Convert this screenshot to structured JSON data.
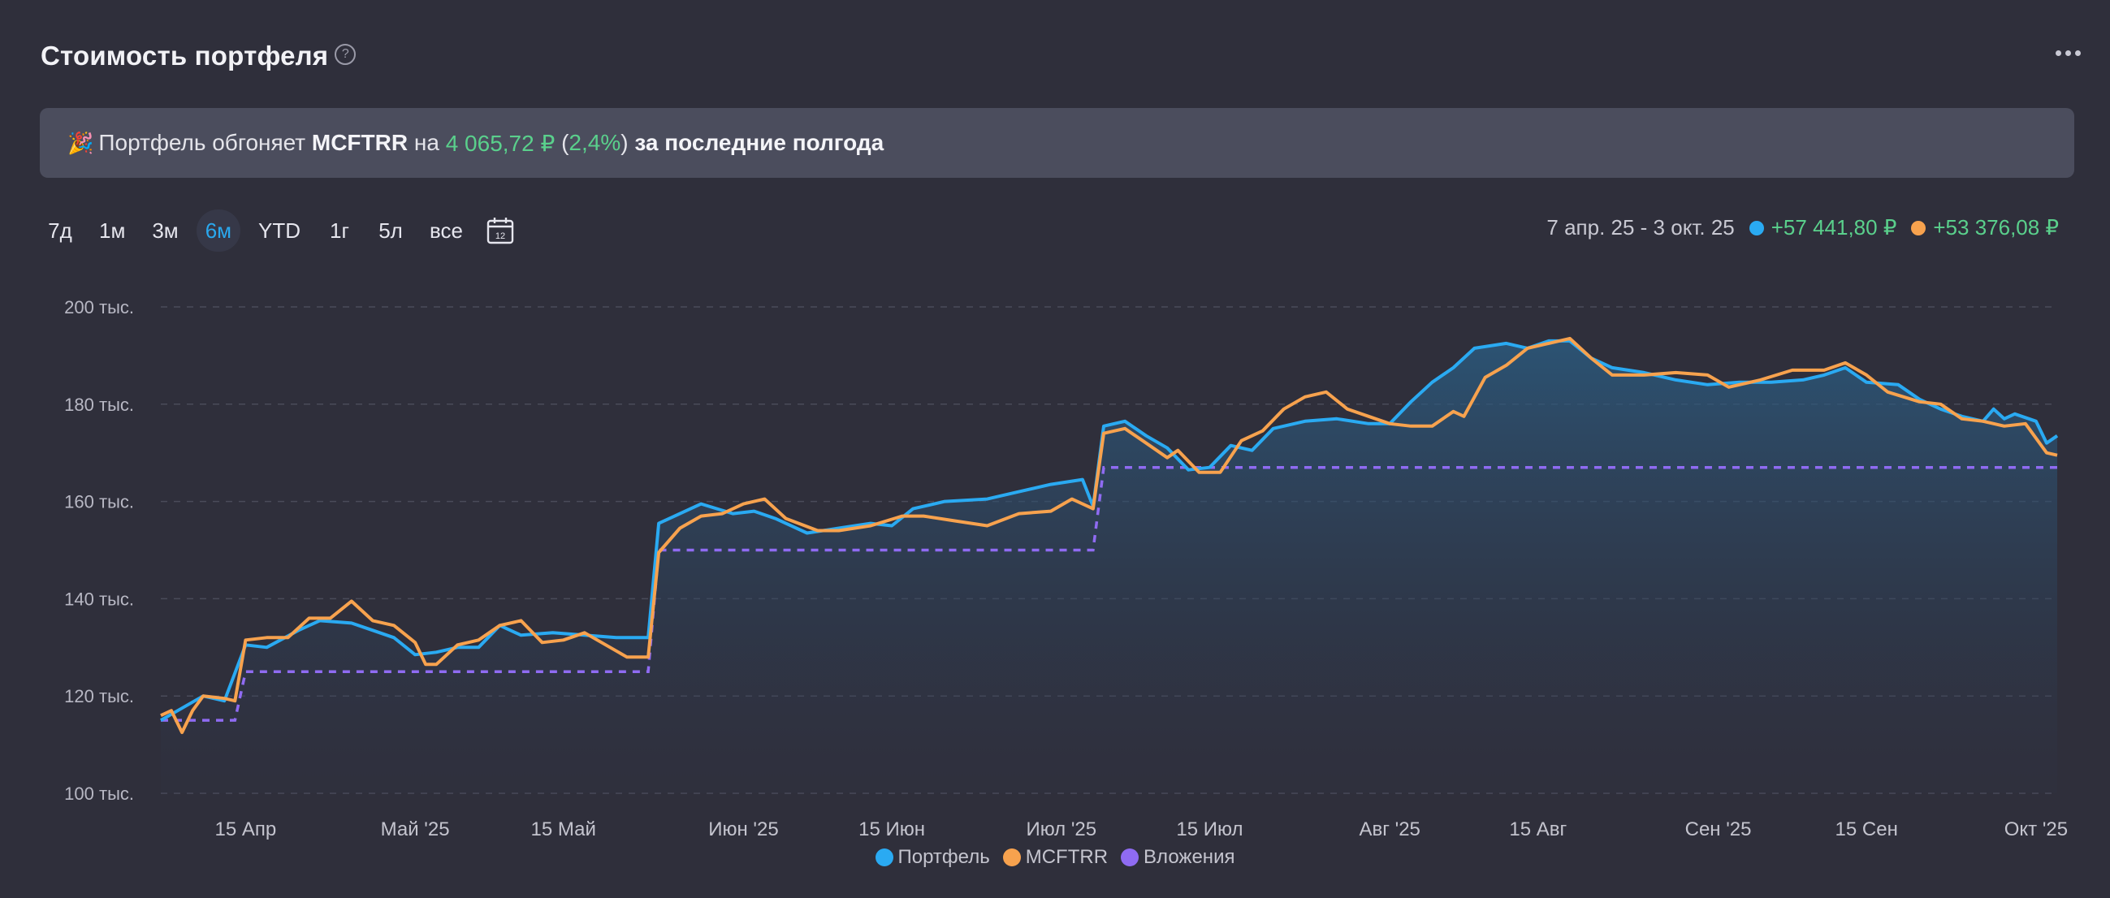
{
  "header": {
    "title": "Стоимость портфеля",
    "help_icon": "?"
  },
  "banner": {
    "emoji": "🎉",
    "text1": "Портфель обгоняет",
    "ticker": "MCFTRR",
    "text2": "на",
    "amount": "4 065,72 ₽",
    "open_paren": "(",
    "percent": "2,4%",
    "close_paren": ")",
    "text3": "за последние полгода"
  },
  "periods": [
    {
      "label": "7д",
      "active": false
    },
    {
      "label": "1м",
      "active": false
    },
    {
      "label": "3м",
      "active": false
    },
    {
      "label": "6м",
      "active": true
    },
    {
      "label": "YTD",
      "active": false
    },
    {
      "label": "1г",
      "active": false
    },
    {
      "label": "5л",
      "active": false
    },
    {
      "label": "все",
      "active": false
    }
  ],
  "calendar_icon_day": "12",
  "range": {
    "dates": "7 апр. 25 - 3 окт. 25",
    "portfolio_gain": "+57 441,80 ₽",
    "index_gain": "+53 376,08 ₽"
  },
  "colors": {
    "portfolio": "#2aaaf2",
    "index": "#f7a24e",
    "contributions": "#8f6bf2",
    "background": "#2f2f3b",
    "gain": "#5ad08c"
  },
  "chart_data": {
    "type": "line",
    "x_range": [
      "2025-04-07",
      "2025-10-03"
    ],
    "ylim": [
      100000,
      200000
    ],
    "y_ticks": [
      {
        "value": 100000,
        "label": "100 тыс."
      },
      {
        "value": 120000,
        "label": "120 тыс."
      },
      {
        "value": 140000,
        "label": "140 тыс."
      },
      {
        "value": 160000,
        "label": "160 тыс."
      },
      {
        "value": 180000,
        "label": "180 тыс."
      },
      {
        "value": 200000,
        "label": "200 тыс."
      }
    ],
    "x_ticks": [
      {
        "date": "2025-04-15",
        "label": "15 Апр"
      },
      {
        "date": "2025-05-01",
        "label": "Май '25"
      },
      {
        "date": "2025-05-15",
        "label": "15 Май"
      },
      {
        "date": "2025-06-01",
        "label": "Июн '25"
      },
      {
        "date": "2025-06-15",
        "label": "15 Июн"
      },
      {
        "date": "2025-07-01",
        "label": "Июл '25"
      },
      {
        "date": "2025-07-15",
        "label": "15 Июл"
      },
      {
        "date": "2025-08-01",
        "label": "Авг '25"
      },
      {
        "date": "2025-08-15",
        "label": "15 Авг"
      },
      {
        "date": "2025-09-01",
        "label": "Сен '25"
      },
      {
        "date": "2025-09-15",
        "label": "15 Сен"
      },
      {
        "date": "2025-10-01",
        "label": "Окт '25"
      }
    ],
    "grid": true,
    "legend_position": "bottom-center",
    "series": [
      {
        "name": "Портфель",
        "style": "area-line",
        "color": "#2aaaf2",
        "points": [
          [
            "2025-04-07",
            115000
          ],
          [
            "2025-04-09",
            117500
          ],
          [
            "2025-04-11",
            120000
          ],
          [
            "2025-04-13",
            119000
          ],
          [
            "2025-04-15",
            130500
          ],
          [
            "2025-04-17",
            130000
          ],
          [
            "2025-04-20",
            133500
          ],
          [
            "2025-04-22",
            135500
          ],
          [
            "2025-04-25",
            135000
          ],
          [
            "2025-04-27",
            133500
          ],
          [
            "2025-04-29",
            132000
          ],
          [
            "2025-05-01",
            128500
          ],
          [
            "2025-05-03",
            129000
          ],
          [
            "2025-05-05",
            130000
          ],
          [
            "2025-05-07",
            130000
          ],
          [
            "2025-05-09",
            134500
          ],
          [
            "2025-05-11",
            132500
          ],
          [
            "2025-05-14",
            133000
          ],
          [
            "2025-05-17",
            132500
          ],
          [
            "2025-05-20",
            132000
          ],
          [
            "2025-05-23",
            132000
          ],
          [
            "2025-05-24",
            155500
          ],
          [
            "2025-05-26",
            157500
          ],
          [
            "2025-05-28",
            159500
          ],
          [
            "2025-05-31",
            157500
          ],
          [
            "2025-06-02",
            158000
          ],
          [
            "2025-06-04",
            156500
          ],
          [
            "2025-06-07",
            153500
          ],
          [
            "2025-06-10",
            154500
          ],
          [
            "2025-06-13",
            155500
          ],
          [
            "2025-06-15",
            155000
          ],
          [
            "2025-06-17",
            158500
          ],
          [
            "2025-06-20",
            160000
          ],
          [
            "2025-06-24",
            160500
          ],
          [
            "2025-06-27",
            162000
          ],
          [
            "2025-06-30",
            163500
          ],
          [
            "2025-07-03",
            164500
          ],
          [
            "2025-07-04",
            159000
          ],
          [
            "2025-07-05",
            175500
          ],
          [
            "2025-07-07",
            176500
          ],
          [
            "2025-07-09",
            173500
          ],
          [
            "2025-07-11",
            171000
          ],
          [
            "2025-07-13",
            166500
          ],
          [
            "2025-07-15",
            167000
          ],
          [
            "2025-07-17",
            171500
          ],
          [
            "2025-07-19",
            170500
          ],
          [
            "2025-07-21",
            175000
          ],
          [
            "2025-07-24",
            176500
          ],
          [
            "2025-07-27",
            177000
          ],
          [
            "2025-07-30",
            176000
          ],
          [
            "2025-08-01",
            176000
          ],
          [
            "2025-08-03",
            180500
          ],
          [
            "2025-08-05",
            184500
          ],
          [
            "2025-08-07",
            187500
          ],
          [
            "2025-08-09",
            191500
          ],
          [
            "2025-08-12",
            192500
          ],
          [
            "2025-08-14",
            191500
          ],
          [
            "2025-08-16",
            193000
          ],
          [
            "2025-08-18",
            193000
          ],
          [
            "2025-08-20",
            189500
          ],
          [
            "2025-08-22",
            187500
          ],
          [
            "2025-08-25",
            186500
          ],
          [
            "2025-08-28",
            185000
          ],
          [
            "2025-08-31",
            184000
          ],
          [
            "2025-09-03",
            184500
          ],
          [
            "2025-09-06",
            184500
          ],
          [
            "2025-09-09",
            185000
          ],
          [
            "2025-09-11",
            186000
          ],
          [
            "2025-09-13",
            187500
          ],
          [
            "2025-09-15",
            184500
          ],
          [
            "2025-09-18",
            184000
          ],
          [
            "2025-09-20",
            181000
          ],
          [
            "2025-09-22",
            179000
          ],
          [
            "2025-09-24",
            177500
          ],
          [
            "2025-09-26",
            176500
          ],
          [
            "2025-09-27",
            179000
          ],
          [
            "2025-09-28",
            177000
          ],
          [
            "2025-09-29",
            178000
          ],
          [
            "2025-10-01",
            176500
          ],
          [
            "2025-10-02",
            172000
          ],
          [
            "2025-10-03",
            173500
          ]
        ]
      },
      {
        "name": "MCFTRR",
        "style": "line",
        "color": "#f7a24e",
        "points": [
          [
            "2025-04-07",
            116000
          ],
          [
            "2025-04-08",
            117000
          ],
          [
            "2025-04-09",
            112500
          ],
          [
            "2025-04-10",
            117000
          ],
          [
            "2025-04-11",
            120000
          ],
          [
            "2025-04-13",
            119500
          ],
          [
            "2025-04-14",
            119000
          ],
          [
            "2025-04-15",
            131500
          ],
          [
            "2025-04-17",
            132000
          ],
          [
            "2025-04-19",
            132000
          ],
          [
            "2025-04-21",
            136000
          ],
          [
            "2025-04-23",
            136000
          ],
          [
            "2025-04-25",
            139500
          ],
          [
            "2025-04-27",
            135500
          ],
          [
            "2025-04-29",
            134500
          ],
          [
            "2025-05-01",
            131000
          ],
          [
            "2025-05-02",
            126500
          ],
          [
            "2025-05-03",
            126500
          ],
          [
            "2025-05-05",
            130500
          ],
          [
            "2025-05-07",
            131500
          ],
          [
            "2025-05-09",
            134500
          ],
          [
            "2025-05-11",
            135500
          ],
          [
            "2025-05-13",
            131000
          ],
          [
            "2025-05-15",
            131500
          ],
          [
            "2025-05-17",
            133000
          ],
          [
            "2025-05-19",
            130500
          ],
          [
            "2025-05-21",
            128000
          ],
          [
            "2025-05-23",
            128000
          ],
          [
            "2025-05-24",
            149500
          ],
          [
            "2025-05-26",
            154500
          ],
          [
            "2025-05-28",
            157000
          ],
          [
            "2025-05-30",
            157500
          ],
          [
            "2025-06-01",
            159500
          ],
          [
            "2025-06-03",
            160500
          ],
          [
            "2025-06-05",
            156500
          ],
          [
            "2025-06-08",
            154000
          ],
          [
            "2025-06-10",
            154000
          ],
          [
            "2025-06-13",
            155000
          ],
          [
            "2025-06-16",
            157000
          ],
          [
            "2025-06-18",
            157000
          ],
          [
            "2025-06-21",
            156000
          ],
          [
            "2025-06-24",
            155000
          ],
          [
            "2025-06-27",
            157500
          ],
          [
            "2025-06-30",
            158000
          ],
          [
            "2025-07-02",
            160500
          ],
          [
            "2025-07-04",
            158500
          ],
          [
            "2025-07-05",
            174000
          ],
          [
            "2025-07-07",
            175000
          ],
          [
            "2025-07-09",
            172000
          ],
          [
            "2025-07-11",
            169000
          ],
          [
            "2025-07-12",
            170500
          ],
          [
            "2025-07-14",
            166000
          ],
          [
            "2025-07-16",
            166000
          ],
          [
            "2025-07-18",
            172500
          ],
          [
            "2025-07-20",
            174500
          ],
          [
            "2025-07-22",
            179000
          ],
          [
            "2025-07-24",
            181500
          ],
          [
            "2025-07-26",
            182500
          ],
          [
            "2025-07-28",
            179000
          ],
          [
            "2025-07-30",
            177500
          ],
          [
            "2025-08-01",
            176000
          ],
          [
            "2025-08-03",
            175500
          ],
          [
            "2025-08-05",
            175500
          ],
          [
            "2025-08-07",
            178500
          ],
          [
            "2025-08-08",
            177500
          ],
          [
            "2025-08-10",
            185500
          ],
          [
            "2025-08-12",
            188000
          ],
          [
            "2025-08-14",
            191500
          ],
          [
            "2025-08-16",
            192500
          ],
          [
            "2025-08-18",
            193500
          ],
          [
            "2025-08-20",
            189500
          ],
          [
            "2025-08-22",
            186000
          ],
          [
            "2025-08-25",
            186000
          ],
          [
            "2025-08-28",
            186500
          ],
          [
            "2025-08-31",
            186000
          ],
          [
            "2025-09-02",
            183500
          ],
          [
            "2025-09-05",
            185000
          ],
          [
            "2025-09-08",
            187000
          ],
          [
            "2025-09-11",
            187000
          ],
          [
            "2025-09-13",
            188500
          ],
          [
            "2025-09-15",
            186000
          ],
          [
            "2025-09-17",
            182500
          ],
          [
            "2025-09-20",
            180500
          ],
          [
            "2025-09-22",
            180000
          ],
          [
            "2025-09-24",
            177000
          ],
          [
            "2025-09-26",
            176500
          ],
          [
            "2025-09-28",
            175500
          ],
          [
            "2025-09-30",
            176000
          ],
          [
            "2025-10-01",
            173000
          ],
          [
            "2025-10-02",
            170000
          ],
          [
            "2025-10-03",
            169500
          ]
        ]
      },
      {
        "name": "Вложения",
        "style": "dashed-step",
        "color": "#8f6bf2",
        "points": [
          [
            "2025-04-07",
            115000
          ],
          [
            "2025-04-14",
            115000
          ],
          [
            "2025-04-15",
            125000
          ],
          [
            "2025-05-23",
            125000
          ],
          [
            "2025-05-24",
            150000
          ],
          [
            "2025-07-04",
            150000
          ],
          [
            "2025-07-05",
            167000
          ],
          [
            "2025-10-03",
            167000
          ]
        ]
      }
    ]
  }
}
